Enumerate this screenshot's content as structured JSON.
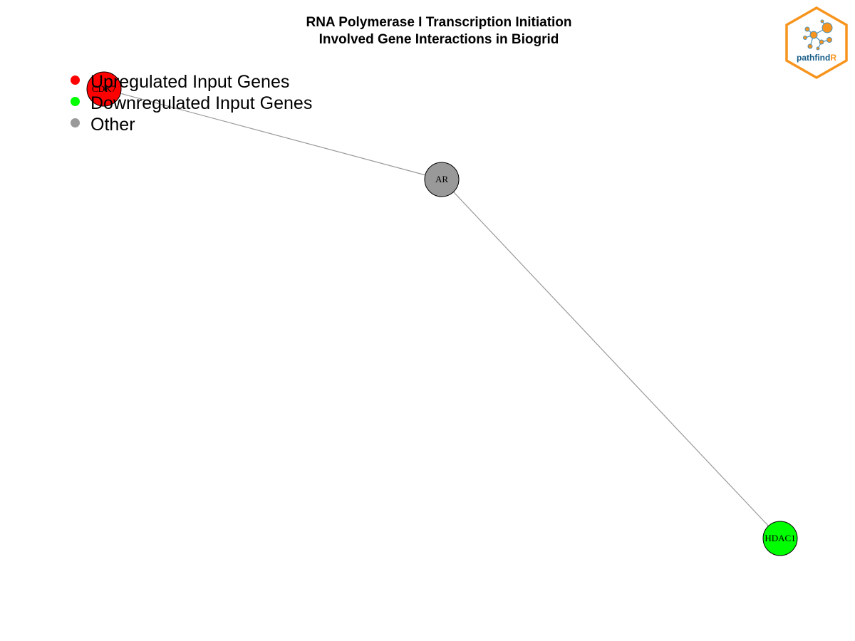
{
  "title": {
    "line1": "RNA Polymerase I Transcription Initiation",
    "line2": "Involved Gene Interactions in Biogrid"
  },
  "legend": [
    {
      "label": "Upregulated Input Genes",
      "color": "#ff0000"
    },
    {
      "label": "Downregulated Input Genes",
      "color": "#00ff00"
    },
    {
      "label": "Other",
      "color": "#999999"
    }
  ],
  "nodes": [
    {
      "id": "CDK7",
      "label": "CDK7",
      "color": "#ff0000"
    },
    {
      "id": "AR",
      "label": "AR",
      "color": "#999999"
    },
    {
      "id": "HDAC1",
      "label": "HDAC1",
      "color": "#00ff00"
    }
  ],
  "edges": [
    {
      "from": "CDK7",
      "to": "AR"
    },
    {
      "from": "AR",
      "to": "HDAC1"
    }
  ],
  "colors": {
    "edge": "#999999",
    "logo_border": "#f7941d",
    "logo_text_main": "#1a5f8a",
    "logo_text_accent": "#f7941d"
  },
  "logo": {
    "icon": "pathfindr-network-icon",
    "text_main": "pathfind",
    "text_accent": "R"
  }
}
